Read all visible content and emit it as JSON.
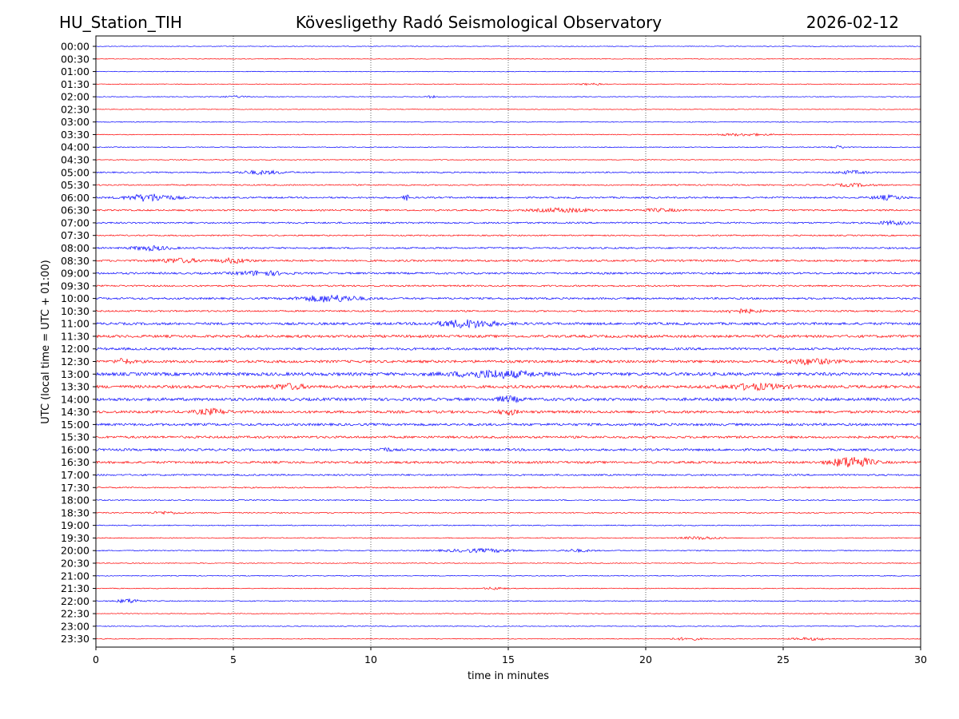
{
  "header": {
    "station": "HU_Station_TIH",
    "observatory": "Kövesligethy Radó Seismological Observatory",
    "date": "2026-02-12"
  },
  "chart_data": {
    "type": "line",
    "title": "Kövesligethy Radó Seismological Observatory",
    "xlabel": "time in minutes",
    "ylabel": "UTC (local time = UTC + 01:00)",
    "xlim": [
      0,
      30
    ],
    "xticks": [
      "0",
      "5",
      "10",
      "15",
      "20",
      "25",
      "30"
    ],
    "xtick_values": [
      0,
      5,
      10,
      15,
      20,
      25,
      30
    ],
    "grid": "vertical dotted at 5-minute intervals",
    "series_colors": [
      "#0000ff",
      "#ff0000"
    ],
    "traces": [
      {
        "label": "00:00",
        "noise": 0.4,
        "events": []
      },
      {
        "label": "00:30",
        "noise": 0.4,
        "events": []
      },
      {
        "label": "01:00",
        "noise": 0.4,
        "events": []
      },
      {
        "label": "01:30",
        "noise": 0.45,
        "events": [
          {
            "t": 18.0,
            "w": 0.6,
            "a": 1.0
          }
        ]
      },
      {
        "label": "02:00",
        "noise": 0.45,
        "events": [
          {
            "t": 5.0,
            "w": 0.8,
            "a": 1.0
          },
          {
            "t": 12.2,
            "w": 0.3,
            "a": 1.2
          }
        ]
      },
      {
        "label": "02:30",
        "noise": 0.4,
        "events": []
      },
      {
        "label": "03:00",
        "noise": 0.5,
        "events": []
      },
      {
        "label": "03:30",
        "noise": 0.5,
        "events": [
          {
            "t": 23.5,
            "w": 1.5,
            "a": 1.3
          }
        ]
      },
      {
        "label": "04:00",
        "noise": 0.5,
        "events": [
          {
            "t": 27.0,
            "w": 0.4,
            "a": 1.6
          }
        ]
      },
      {
        "label": "04:30",
        "noise": 0.5,
        "events": []
      },
      {
        "label": "05:00",
        "noise": 0.8,
        "events": [
          {
            "t": 6.0,
            "w": 1.2,
            "a": 2.0
          },
          {
            "t": 27.5,
            "w": 0.8,
            "a": 1.8
          }
        ]
      },
      {
        "label": "05:30",
        "noise": 0.8,
        "events": [
          {
            "t": 27.5,
            "w": 1.0,
            "a": 1.6
          }
        ]
      },
      {
        "label": "06:00",
        "noise": 1.0,
        "events": [
          {
            "t": 2.0,
            "w": 1.2,
            "a": 4.5
          },
          {
            "t": 11.3,
            "w": 0.2,
            "a": 3.0
          },
          {
            "t": 28.8,
            "w": 0.8,
            "a": 2.5
          }
        ]
      },
      {
        "label": "06:30",
        "noise": 1.0,
        "events": [
          {
            "t": 17.0,
            "w": 1.5,
            "a": 2.2
          },
          {
            "t": 20.5,
            "w": 1.0,
            "a": 1.5
          }
        ]
      },
      {
        "label": "07:00",
        "noise": 1.0,
        "events": [
          {
            "t": 29.0,
            "w": 0.8,
            "a": 2.0
          }
        ]
      },
      {
        "label": "07:30",
        "noise": 0.8,
        "events": []
      },
      {
        "label": "08:00",
        "noise": 1.0,
        "events": [
          {
            "t": 2.0,
            "w": 1.0,
            "a": 2.5
          }
        ]
      },
      {
        "label": "08:30",
        "noise": 1.2,
        "events": [
          {
            "t": 3.0,
            "w": 1.0,
            "a": 2.5
          },
          {
            "t": 5.0,
            "w": 0.8,
            "a": 2.5
          }
        ]
      },
      {
        "label": "09:00",
        "noise": 1.2,
        "events": [
          {
            "t": 6.0,
            "w": 1.2,
            "a": 2.5
          }
        ]
      },
      {
        "label": "09:30",
        "noise": 1.0,
        "events": []
      },
      {
        "label": "10:00",
        "noise": 1.2,
        "events": [
          {
            "t": 8.5,
            "w": 1.5,
            "a": 4.0
          }
        ]
      },
      {
        "label": "10:30",
        "noise": 1.0,
        "events": [
          {
            "t": 23.5,
            "w": 1.0,
            "a": 2.2
          }
        ]
      },
      {
        "label": "11:00",
        "noise": 1.5,
        "events": [
          {
            "t": 13.5,
            "w": 1.5,
            "a": 4.5
          }
        ]
      },
      {
        "label": "11:30",
        "noise": 1.6,
        "events": []
      },
      {
        "label": "12:00",
        "noise": 1.5,
        "events": []
      },
      {
        "label": "12:30",
        "noise": 1.6,
        "events": [
          {
            "t": 1.0,
            "w": 0.4,
            "a": 3.0
          },
          {
            "t": 26.0,
            "w": 1.2,
            "a": 3.0
          }
        ]
      },
      {
        "label": "13:00",
        "noise": 2.0,
        "events": [
          {
            "t": 14.5,
            "w": 2.0,
            "a": 4.0
          }
        ]
      },
      {
        "label": "13:30",
        "noise": 1.8,
        "events": [
          {
            "t": 7.0,
            "w": 0.8,
            "a": 3.0
          },
          {
            "t": 24.0,
            "w": 1.5,
            "a": 3.0
          }
        ]
      },
      {
        "label": "14:00",
        "noise": 1.8,
        "events": [
          {
            "t": 15.0,
            "w": 0.6,
            "a": 3.0
          }
        ]
      },
      {
        "label": "14:30",
        "noise": 1.6,
        "events": [
          {
            "t": 4.2,
            "w": 0.8,
            "a": 3.0
          },
          {
            "t": 15.0,
            "w": 0.5,
            "a": 2.8
          }
        ]
      },
      {
        "label": "15:00",
        "noise": 1.5,
        "events": []
      },
      {
        "label": "15:30",
        "noise": 1.4,
        "events": []
      },
      {
        "label": "16:00",
        "noise": 1.4,
        "events": [
          {
            "t": 10.5,
            "w": 0.3,
            "a": 2.5
          }
        ]
      },
      {
        "label": "16:30",
        "noise": 1.4,
        "events": [
          {
            "t": 27.5,
            "w": 1.0,
            "a": 7.0
          }
        ]
      },
      {
        "label": "17:00",
        "noise": 1.0,
        "events": []
      },
      {
        "label": "17:30",
        "noise": 0.8,
        "events": []
      },
      {
        "label": "18:00",
        "noise": 0.7,
        "events": []
      },
      {
        "label": "18:30",
        "noise": 0.7,
        "events": [
          {
            "t": 2.5,
            "w": 0.8,
            "a": 1.5
          }
        ]
      },
      {
        "label": "19:00",
        "noise": 0.6,
        "events": []
      },
      {
        "label": "19:30",
        "noise": 0.6,
        "events": [
          {
            "t": 22.0,
            "w": 1.0,
            "a": 1.5
          }
        ]
      },
      {
        "label": "20:00",
        "noise": 0.6,
        "events": [
          {
            "t": 14.0,
            "w": 2.0,
            "a": 2.0
          },
          {
            "t": 17.5,
            "w": 0.8,
            "a": 1.5
          }
        ]
      },
      {
        "label": "20:30",
        "noise": 0.5,
        "events": []
      },
      {
        "label": "21:00",
        "noise": 0.5,
        "events": []
      },
      {
        "label": "21:30",
        "noise": 0.5,
        "events": [
          {
            "t": 14.5,
            "w": 0.5,
            "a": 1.5
          }
        ]
      },
      {
        "label": "22:00",
        "noise": 0.6,
        "events": [
          {
            "t": 1.2,
            "w": 0.6,
            "a": 2.5
          }
        ]
      },
      {
        "label": "22:30",
        "noise": 0.5,
        "events": []
      },
      {
        "label": "23:00",
        "noise": 0.5,
        "events": []
      },
      {
        "label": "23:30",
        "noise": 0.5,
        "events": [
          {
            "t": 21.5,
            "w": 0.8,
            "a": 1.5
          },
          {
            "t": 26.0,
            "w": 1.0,
            "a": 1.5
          }
        ]
      }
    ]
  }
}
